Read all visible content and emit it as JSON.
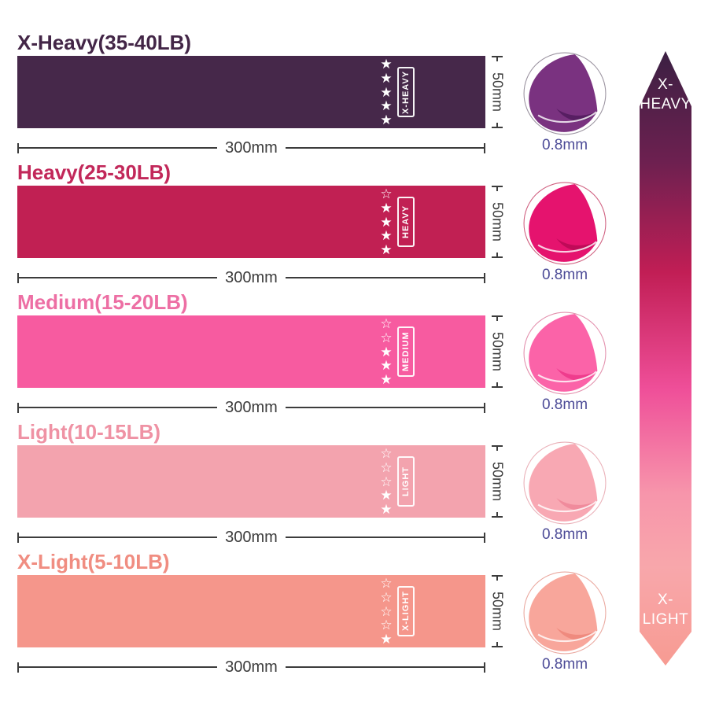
{
  "colors": {
    "background": "#ffffff",
    "measure": "#3c3c3c",
    "thickness": "#4c4b97",
    "star": "#ffffff"
  },
  "icons": {
    "star_filled": "★",
    "star_outline": "☆"
  },
  "bands": [
    {
      "title": "X-Heavy(35-40LB)",
      "band_label": "X-HEAVY",
      "color": "#46284a",
      "title_color": "#432647",
      "stars_filled": 5,
      "stars_total": 5,
      "width_label": "300mm",
      "height_label": "50mm",
      "thickness_label": "0.8mm",
      "photo_main": "#7a3280",
      "photo_dark": "#571e62",
      "photo_ring": "#9b93a0"
    },
    {
      "title": "Heavy(25-30LB)",
      "band_label": "HEAVY",
      "color": "#c12053",
      "title_color": "#c2285a",
      "stars_filled": 4,
      "stars_total": 5,
      "width_label": "300mm",
      "height_label": "50mm",
      "thickness_label": "0.8mm",
      "photo_main": "#e5136e",
      "photo_dark": "#bf0a58",
      "photo_ring": "#d06080"
    },
    {
      "title": "Medium(15-20LB)",
      "band_label": "MEDIUM",
      "color": "#f75ba0",
      "title_color": "#ed6fa4",
      "stars_filled": 3,
      "stars_total": 5,
      "width_label": "300mm",
      "height_label": "50mm",
      "thickness_label": "0.8mm",
      "photo_main": "#fb63a8",
      "photo_dark": "#ef3c8d",
      "photo_ring": "#e390ad"
    },
    {
      "title": "Light(10-15LB)",
      "band_label": "LIGHT",
      "color": "#f3a3ae",
      "title_color": "#ef92a4",
      "stars_filled": 2,
      "stars_total": 5,
      "width_label": "300mm",
      "height_label": "50mm",
      "thickness_label": "0.8mm",
      "photo_main": "#f8a8b3",
      "photo_dark": "#f08b9c",
      "photo_ring": "#eab0b8"
    },
    {
      "title": "X-Light(5-10LB)",
      "band_label": "X-LIGHT",
      "color": "#f5968b",
      "title_color": "#f08d81",
      "stars_filled": 1,
      "stars_total": 5,
      "width_label": "300mm",
      "height_label": "50mm",
      "thickness_label": "0.8mm",
      "photo_main": "#f8a69b",
      "photo_dark": "#ef8a7e",
      "photo_ring": "#eaa89f"
    }
  ],
  "arrow": {
    "top_label_line1": "X-",
    "top_label_line2": "HEAVY",
    "bottom_label_line1": "X-",
    "bottom_label_line2": "LIGHT",
    "gradient_stops": [
      "#3b2043 0%",
      "#6d2050 18%",
      "#c11e55 36%",
      "#ef4f99 55%",
      "#f795ab 72%",
      "#f8a7ab 84%",
      "#f79b92 100%"
    ]
  }
}
